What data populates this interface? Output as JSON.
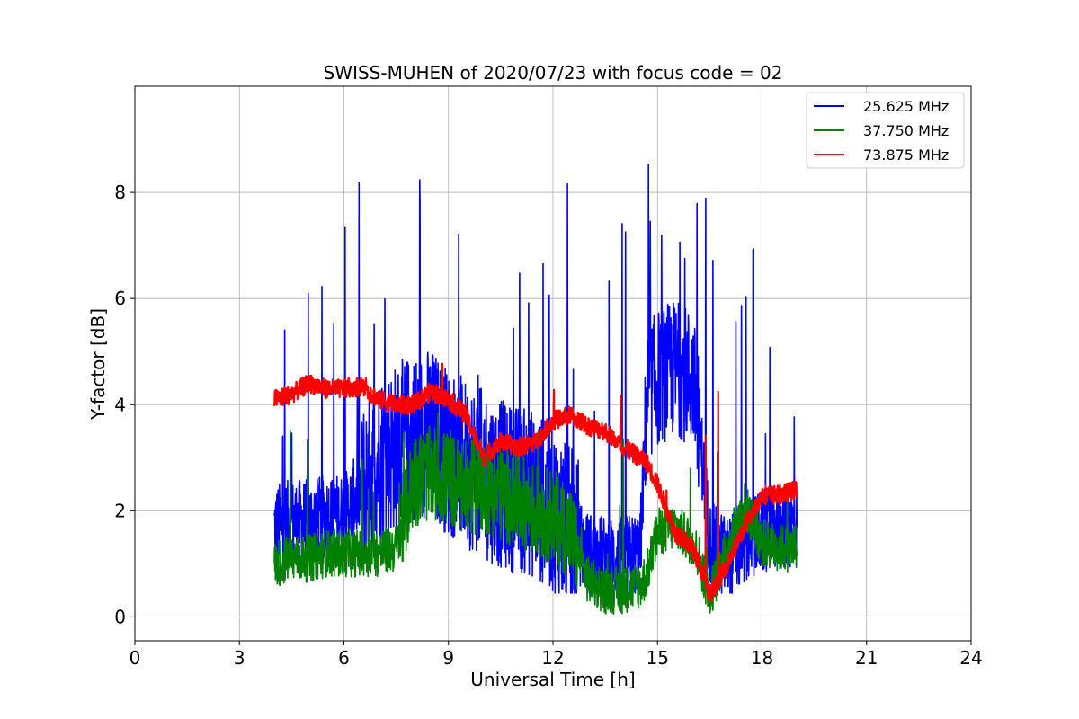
{
  "chart_data": {
    "type": "line",
    "title": "SWISS-MUHEN of 2020/07/23 with focus code = 02",
    "xlabel": "Universal Time [h]",
    "ylabel": "Y-factor [dB]",
    "xlim": [
      0,
      24
    ],
    "ylim": [
      -0.45,
      10.0
    ],
    "xticks": [
      0,
      3,
      6,
      9,
      12,
      15,
      18,
      21,
      24
    ],
    "yticks": [
      0,
      2,
      4,
      6,
      8
    ],
    "grid": true,
    "legend_position": "top-right",
    "series": [
      {
        "name": "25.625 MHz",
        "color": "#0000ff",
        "x": [
          4.0,
          4.5,
          5.0,
          5.5,
          6.0,
          6.5,
          7.0,
          7.5,
          8.0,
          8.5,
          9.0,
          9.5,
          10.0,
          10.5,
          11.0,
          11.5,
          12.0,
          12.5,
          13.0,
          13.5,
          14.0,
          14.5,
          14.7,
          15.0,
          15.5,
          16.0,
          16.2,
          16.5,
          17.0,
          17.5,
          18.0,
          18.5,
          19.0
        ],
        "y": [
          1.7,
          1.8,
          1.8,
          1.9,
          1.9,
          2.4,
          3.0,
          3.2,
          3.4,
          3.5,
          3.1,
          2.9,
          2.7,
          2.5,
          2.4,
          2.3,
          2.0,
          1.6,
          1.2,
          1.1,
          1.1,
          1.2,
          4.2,
          4.5,
          4.7,
          4.5,
          3.6,
          1.4,
          1.1,
          1.4,
          1.6,
          1.7,
          1.7
        ],
        "noise_range": [
          0.45,
          9.5
        ]
      },
      {
        "name": "37.750 MHz",
        "color": "#008000",
        "x": [
          4.0,
          4.5,
          5.0,
          5.5,
          6.0,
          6.5,
          7.0,
          7.5,
          8.0,
          8.5,
          9.0,
          9.5,
          10.0,
          10.5,
          11.0,
          11.5,
          12.0,
          12.5,
          13.0,
          13.5,
          14.0,
          14.5,
          14.7,
          15.0,
          15.5,
          16.0,
          16.2,
          16.5,
          17.0,
          17.5,
          18.0,
          18.5,
          19.0
        ],
        "y": [
          1.0,
          1.1,
          1.1,
          1.2,
          1.2,
          1.2,
          1.2,
          1.3,
          2.6,
          2.7,
          2.6,
          2.4,
          2.5,
          2.3,
          2.2,
          2.0,
          1.9,
          1.6,
          0.7,
          0.5,
          0.5,
          0.6,
          0.8,
          1.6,
          1.7,
          1.4,
          1.1,
          0.4,
          1.3,
          2.1,
          1.4,
          1.3,
          1.3
        ],
        "noise_range": [
          0.0,
          4.1
        ]
      },
      {
        "name": "73.875 MHz",
        "color": "#ff0000",
        "x": [
          4.0,
          4.5,
          5.0,
          5.5,
          6.0,
          6.5,
          7.0,
          7.5,
          8.0,
          8.5,
          9.0,
          9.5,
          10.0,
          10.5,
          11.0,
          11.5,
          12.0,
          12.5,
          13.0,
          13.5,
          14.0,
          14.5,
          14.7,
          15.0,
          15.5,
          16.0,
          16.2,
          16.5,
          17.0,
          17.5,
          18.0,
          18.5,
          19.0
        ],
        "y": [
          4.1,
          4.2,
          4.4,
          4.3,
          4.3,
          4.35,
          4.1,
          4.0,
          4.0,
          4.25,
          4.1,
          3.8,
          3.0,
          3.3,
          3.2,
          3.3,
          3.7,
          3.8,
          3.6,
          3.5,
          3.2,
          3.0,
          2.9,
          2.5,
          1.6,
          1.3,
          1.0,
          0.4,
          1.0,
          1.7,
          2.3,
          2.3,
          2.4
        ],
        "noise_range": [
          0.0,
          4.9
        ]
      }
    ]
  }
}
